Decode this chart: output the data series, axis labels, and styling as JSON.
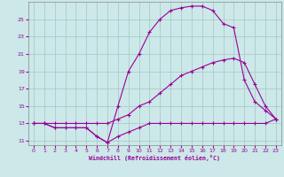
{
  "line1_x": [
    0,
    1,
    2,
    3,
    4,
    5,
    6,
    7,
    8,
    9,
    10,
    11,
    12,
    13,
    14,
    15,
    16,
    17,
    18,
    19,
    20,
    21,
    22,
    23
  ],
  "line1_y": [
    13,
    13,
    12.5,
    12.5,
    12.5,
    12.5,
    11.5,
    10.8,
    11.5,
    12,
    12.5,
    13,
    13,
    13,
    13,
    13,
    13,
    13,
    13,
    13,
    13,
    13,
    13,
    13.5
  ],
  "line2_x": [
    0,
    1,
    2,
    3,
    4,
    5,
    6,
    7,
    8,
    9,
    10,
    11,
    12,
    13,
    14,
    15,
    16,
    17,
    18,
    19,
    20,
    21,
    22,
    23
  ],
  "line2_y": [
    13,
    13,
    13,
    13,
    13,
    13,
    13,
    13,
    13.5,
    14,
    15,
    15.5,
    16.5,
    17.5,
    18.5,
    19,
    19.5,
    20,
    20.3,
    20.5,
    20,
    17.5,
    15,
    13.5
  ],
  "line3_x": [
    0,
    1,
    2,
    3,
    4,
    5,
    6,
    7,
    8,
    9,
    10,
    11,
    12,
    13,
    14,
    15,
    16,
    17,
    18,
    19,
    20,
    21,
    22,
    23
  ],
  "line3_y": [
    13,
    13,
    12.5,
    12.5,
    12.5,
    12.5,
    11.5,
    10.8,
    15,
    19,
    21,
    23.5,
    25,
    26,
    26.3,
    26.5,
    26.5,
    26,
    24.5,
    24,
    18,
    15.5,
    14.5,
    13.5
  ],
  "color": "#990099",
  "bg_color": "#cce8e8",
  "grid_color": "#aacccc",
  "xlabel": "Windchill (Refroidissement éolien,°C)",
  "ylim": [
    10.5,
    27
  ],
  "xlim": [
    -0.5,
    23.5
  ],
  "yticks": [
    11,
    13,
    15,
    17,
    19,
    21,
    23,
    25
  ],
  "xticks": [
    0,
    1,
    2,
    3,
    4,
    5,
    6,
    7,
    8,
    9,
    10,
    11,
    12,
    13,
    14,
    15,
    16,
    17,
    18,
    19,
    20,
    21,
    22,
    23
  ]
}
